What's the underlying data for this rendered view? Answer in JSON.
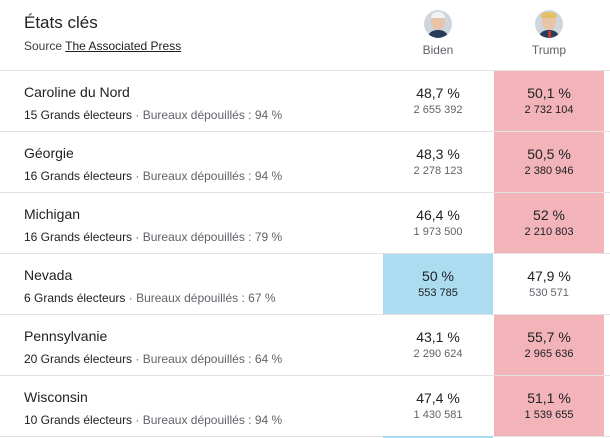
{
  "header": {
    "title": "États clés",
    "source_prefix": "Source",
    "source_link": "The Associated Press"
  },
  "candidates": [
    {
      "name": "Biden",
      "avatar_icon": "biden-portrait-icon"
    },
    {
      "name": "Trump",
      "avatar_icon": "trump-portrait-icon"
    }
  ],
  "colors": {
    "republican_win": "#f2b3b9",
    "democrat_win": "#abdcf0"
  },
  "rows": [
    {
      "state": "Caroline du Nord",
      "electors": "15 Grands électeurs",
      "separator": "·",
      "reported": "Bureaux dépouillés : 94 %",
      "biden_pct": "48,7 %",
      "biden_votes": "2 655 392",
      "trump_pct": "50,1 %",
      "trump_votes": "2 732 104",
      "winner": "trump"
    },
    {
      "state": "Géorgie",
      "electors": "16 Grands électeurs",
      "separator": "·",
      "reported": "Bureaux dépouillés : 94 %",
      "biden_pct": "48,3 %",
      "biden_votes": "2 278 123",
      "trump_pct": "50,5 %",
      "trump_votes": "2 380 946",
      "winner": "trump"
    },
    {
      "state": "Michigan",
      "electors": "16 Grands électeurs",
      "separator": "·",
      "reported": "Bureaux dépouillés : 79 %",
      "biden_pct": "46,4 %",
      "biden_votes": "1 973 500",
      "trump_pct": "52 %",
      "trump_votes": "2 210 803",
      "winner": "trump"
    },
    {
      "state": "Nevada",
      "electors": "6 Grands électeurs",
      "separator": "·",
      "reported": "Bureaux dépouillés : 67 %",
      "biden_pct": "50 %",
      "biden_votes": "553 785",
      "trump_pct": "47,9 %",
      "trump_votes": "530 571",
      "winner": "biden"
    },
    {
      "state": "Pennsylvanie",
      "electors": "20 Grands électeurs",
      "separator": "·",
      "reported": "Bureaux dépouillés : 64 %",
      "biden_pct": "43,1 %",
      "biden_votes": "2 290 624",
      "trump_pct": "55,7 %",
      "trump_votes": "2 965 636",
      "winner": "trump"
    },
    {
      "state": "Wisconsin",
      "electors": "10 Grands électeurs",
      "separator": "·",
      "reported": "Bureaux dépouillés : 94 %",
      "biden_pct": "47,4 %",
      "biden_votes": "1 430 581",
      "trump_pct": "51,1 %",
      "trump_votes": "1 539 655",
      "winner": "trump"
    }
  ]
}
